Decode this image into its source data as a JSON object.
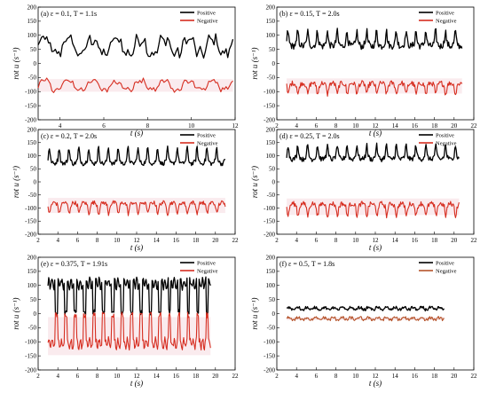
{
  "chart_data": [
    {
      "type": "line",
      "panel_label": "(a)",
      "param_text": "ε = 0.1, T = 1.1s",
      "xlabel": "t (s)",
      "ylabel": "rot u (s⁻¹)",
      "xlim": [
        3,
        12
      ],
      "ylim": [
        -200,
        200
      ],
      "xticks": [
        4,
        6,
        8,
        10,
        12
      ],
      "yticks": [
        -200,
        -150,
        -100,
        -50,
        0,
        50,
        100,
        150,
        200
      ],
      "grid": false,
      "legend": "top-right",
      "series": [
        {
          "name": "Positive",
          "color": "#000000",
          "t_start": 3.0,
          "t_end": 11.9,
          "period": 1.1,
          "base": 60,
          "amp": 42,
          "noise": 18,
          "wave": "jag"
        },
        {
          "name": "Negative",
          "color": "#d62d20",
          "t_start": 3.0,
          "t_end": 11.9,
          "period": 1.1,
          "base": -78,
          "amp": 25,
          "noise": 9,
          "wave": "jag"
        }
      ]
    },
    {
      "type": "line",
      "panel_label": "(b)",
      "param_text": "ε = 0.15, T = 2.0s",
      "xlabel": "t (s)",
      "ylabel": "rot u (s⁻¹)",
      "xlim": [
        2,
        22
      ],
      "ylim": [
        -200,
        200
      ],
      "xticks": [
        2,
        4,
        6,
        8,
        10,
        12,
        14,
        16,
        18,
        20,
        22
      ],
      "yticks": [
        -200,
        -150,
        -100,
        -50,
        0,
        50,
        100,
        150,
        200
      ],
      "grid": false,
      "legend": "top-right",
      "series": [
        {
          "name": "Positive",
          "color": "#000000",
          "t_start": 3.0,
          "t_end": 20.8,
          "period": 1.0,
          "base": 75,
          "amp": 40,
          "noise": 12,
          "wave": "spike"
        },
        {
          "name": "Negative",
          "color": "#d62d20",
          "t_start": 3.0,
          "t_end": 20.8,
          "period": 1.0,
          "base": -80,
          "amp": 30,
          "noise": 9,
          "wave": "dip"
        }
      ]
    },
    {
      "type": "line",
      "panel_label": "(c)",
      "param_text": "ε = 0.2, T = 2.0s",
      "xlabel": "t (s)",
      "ylabel": "rot u (s⁻¹)",
      "xlim": [
        2,
        22
      ],
      "ylim": [
        -200,
        200
      ],
      "xticks": [
        2,
        4,
        6,
        8,
        10,
        12,
        14,
        16,
        18,
        20,
        22
      ],
      "yticks": [
        -200,
        -150,
        -100,
        -50,
        0,
        50,
        100,
        150,
        200
      ],
      "grid": false,
      "legend": "top-right",
      "series": [
        {
          "name": "Positive",
          "color": "#000000",
          "t_start": 3.0,
          "t_end": 21.0,
          "period": 1.0,
          "base": 85,
          "amp": 45,
          "noise": 8,
          "wave": "spike"
        },
        {
          "name": "Negative",
          "color": "#d62d20",
          "t_start": 3.0,
          "t_end": 21.0,
          "period": 1.0,
          "base": -90,
          "amp": 32,
          "noise": 8,
          "wave": "dip"
        }
      ]
    },
    {
      "type": "line",
      "panel_label": "(d)",
      "param_text": "ε = 0.25, T = 2.0s",
      "xlabel": "t (s)",
      "ylabel": "rot u (s⁻¹)",
      "xlim": [
        2,
        22
      ],
      "ylim": [
        -200,
        200
      ],
      "xticks": [
        2,
        4,
        6,
        8,
        10,
        12,
        14,
        16,
        18,
        20,
        22
      ],
      "yticks": [
        -200,
        -150,
        -100,
        -50,
        0,
        50,
        100,
        150,
        200
      ],
      "grid": false,
      "legend": "top-right",
      "series": [
        {
          "name": "Positive",
          "color": "#000000",
          "t_start": 3.0,
          "t_end": 20.5,
          "period": 1.0,
          "base": 100,
          "amp": 40,
          "noise": 9,
          "wave": "spike"
        },
        {
          "name": "Negative",
          "color": "#d62d20",
          "t_start": 3.0,
          "t_end": 20.5,
          "period": 1.0,
          "base": -95,
          "amp": 35,
          "noise": 9,
          "wave": "dip"
        }
      ]
    },
    {
      "type": "line",
      "panel_label": "(e)",
      "param_text": "ε = 0.375, T = 1.91s",
      "xlabel": "t (s)",
      "ylabel": "rot u (s⁻¹)",
      "xlim": [
        2,
        22
      ],
      "ylim": [
        -200,
        200
      ],
      "xticks": [
        2,
        4,
        6,
        8,
        10,
        12,
        14,
        16,
        18,
        20,
        22
      ],
      "yticks": [
        -200,
        -150,
        -100,
        -50,
        0,
        50,
        100,
        150,
        200
      ],
      "grid": false,
      "legend": "top-right",
      "series": [
        {
          "name": "Positive",
          "color": "#000000",
          "t_start": 3.0,
          "t_end": 19.5,
          "period": 0.955,
          "base": 80,
          "amp": 75,
          "noise": 10,
          "wave": "square"
        },
        {
          "name": "Negative",
          "color": "#d62d20",
          "t_start": 3.0,
          "t_end": 19.5,
          "period": 0.955,
          "base": -80,
          "amp": 75,
          "noise": 10,
          "wave": "square_neg"
        }
      ]
    },
    {
      "type": "line",
      "panel_label": "(f)",
      "param_text": "ε = 0.5, T = 1.8s",
      "xlabel": "t (s)",
      "ylabel": "rot u (s⁻¹)",
      "xlim": [
        2,
        22
      ],
      "ylim": [
        -200,
        200
      ],
      "xticks": [
        2,
        4,
        6,
        8,
        10,
        12,
        14,
        16,
        18,
        20,
        22
      ],
      "yticks": [
        -200,
        -150,
        -100,
        -50,
        0,
        50,
        100,
        150,
        200
      ],
      "grid": false,
      "legend": "top-right",
      "series": [
        {
          "name": "Positive",
          "color": "#000000",
          "t_start": 3.0,
          "t_end": 19.0,
          "period": 0.9,
          "base": 18,
          "amp": 6,
          "noise": 4,
          "wave": "jag"
        },
        {
          "name": "Negative",
          "color": "#b5532a",
          "t_start": 3.0,
          "t_end": 19.0,
          "period": 0.9,
          "base": -18,
          "amp": 6,
          "noise": 4,
          "wave": "jag"
        }
      ]
    }
  ]
}
